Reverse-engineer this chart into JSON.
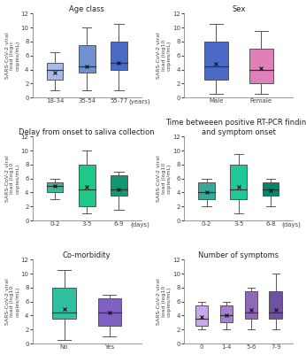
{
  "plots": [
    {
      "title": "Age class",
      "xlabel": "(years)",
      "ylabel": "SARS-CoV-2 viral\nload (log₁₀\ncopies/mL)",
      "categories": [
        "18-34",
        "35-54",
        "55-77"
      ],
      "colors": [
        "#aab8e8",
        "#7090d0",
        "#4a6ac8"
      ],
      "boxes": [
        {
          "med": 4.0,
          "q1": 2.5,
          "q3": 5.0,
          "whislo": 1.0,
          "whishi": 6.5,
          "mean": 3.5
        },
        {
          "med": 4.5,
          "q1": 3.5,
          "q3": 7.5,
          "whislo": 1.0,
          "whishi": 10.0,
          "mean": 4.5
        },
        {
          "med": 5.0,
          "q1": 4.0,
          "q3": 8.0,
          "whislo": 1.0,
          "whishi": 10.5,
          "mean": 5.0
        }
      ]
    },
    {
      "title": "Sex",
      "xlabel": "",
      "ylabel": "SARS-CoV-2 viral\nload (log10\ncopies/mL)",
      "categories": [
        "Male",
        "Female"
      ],
      "colors": [
        "#4a6ac8",
        "#e080b8"
      ],
      "boxes": [
        {
          "med": 4.5,
          "q1": 2.5,
          "q3": 8.0,
          "whislo": 0.5,
          "whishi": 10.5,
          "mean": 4.8
        },
        {
          "med": 4.0,
          "q1": 2.0,
          "q3": 7.0,
          "whislo": 0.5,
          "whishi": 9.5,
          "mean": 4.2
        }
      ]
    },
    {
      "title": "Delay from onset to saliva collection",
      "xlabel": "(days)",
      "ylabel": "SARS-CoV-2 viral\nload (log10\ncopies/mL)",
      "categories": [
        "0-2",
        "3-5",
        "6-9"
      ],
      "colors": [
        "#40b898",
        "#20c888",
        "#109870"
      ],
      "boxes": [
        {
          "med": 5.0,
          "q1": 4.0,
          "q3": 5.5,
          "whislo": 3.0,
          "whishi": 6.0,
          "mean": 5.0
        },
        {
          "med": 4.5,
          "q1": 2.0,
          "q3": 8.0,
          "whislo": 1.0,
          "whishi": 10.0,
          "mean": 4.8
        },
        {
          "med": 4.5,
          "q1": 3.5,
          "q3": 6.5,
          "whislo": 1.5,
          "whishi": 7.0,
          "mean": 4.5
        }
      ]
    },
    {
      "title": "Time betweeen positive RT-PCR finding\nand symptom onset",
      "xlabel": "(days)",
      "ylabel": "SARS-CoV-2 viral\nload (log10\ncopies/mL)",
      "categories": [
        "0-2",
        "3-5",
        "6-8"
      ],
      "colors": [
        "#38a898",
        "#20c898",
        "#008868"
      ],
      "boxes": [
        {
          "med": 4.0,
          "q1": 3.0,
          "q3": 5.5,
          "whislo": 2.0,
          "whishi": 6.0,
          "mean": 4.0
        },
        {
          "med": 4.5,
          "q1": 3.0,
          "q3": 8.0,
          "whislo": 1.0,
          "whishi": 9.5,
          "mean": 4.8
        },
        {
          "med": 4.5,
          "q1": 3.5,
          "q3": 5.5,
          "whislo": 2.0,
          "whishi": 6.0,
          "mean": 4.3
        }
      ]
    },
    {
      "title": "Co-morbidity",
      "xlabel": "",
      "ylabel": "SARS-CoV-2 viral\nload (log10\ncopies/mL)",
      "categories": [
        "No",
        "Yes"
      ],
      "colors": [
        "#30c0a0",
        "#8060c0"
      ],
      "boxes": [
        {
          "med": 4.5,
          "q1": 3.5,
          "q3": 8.0,
          "whislo": 0.5,
          "whishi": 10.5,
          "mean": 5.0
        },
        {
          "med": 4.5,
          "q1": 2.5,
          "q3": 6.5,
          "whislo": 1.0,
          "whishi": 7.0,
          "mean": 4.5
        }
      ]
    },
    {
      "title": "Number of symptoms",
      "xlabel": "",
      "ylabel": "SARS-CoV-2 viral\nload (log10\ncopies/mL)",
      "categories": [
        "0",
        "1-4",
        "5-6",
        "7-9"
      ],
      "colors": [
        "#c8a8e8",
        "#a880d0",
        "#9068b8",
        "#7050a0"
      ],
      "boxes": [
        {
          "med": 3.5,
          "q1": 2.5,
          "q3": 5.5,
          "whislo": 2.0,
          "whishi": 6.0,
          "mean": 3.8
        },
        {
          "med": 4.0,
          "q1": 3.0,
          "q3": 5.5,
          "whislo": 2.0,
          "whishi": 6.0,
          "mean": 4.0
        },
        {
          "med": 4.5,
          "q1": 3.5,
          "q3": 7.5,
          "whislo": 2.0,
          "whishi": 8.0,
          "mean": 4.8
        },
        {
          "med": 4.5,
          "q1": 3.5,
          "q3": 7.5,
          "whislo": 2.0,
          "whishi": 10.0,
          "mean": 4.8
        }
      ]
    }
  ],
  "ylim": [
    0,
    12
  ],
  "yticks": [
    0,
    2,
    4,
    6,
    8,
    10,
    12
  ],
  "background": "#ffffff"
}
